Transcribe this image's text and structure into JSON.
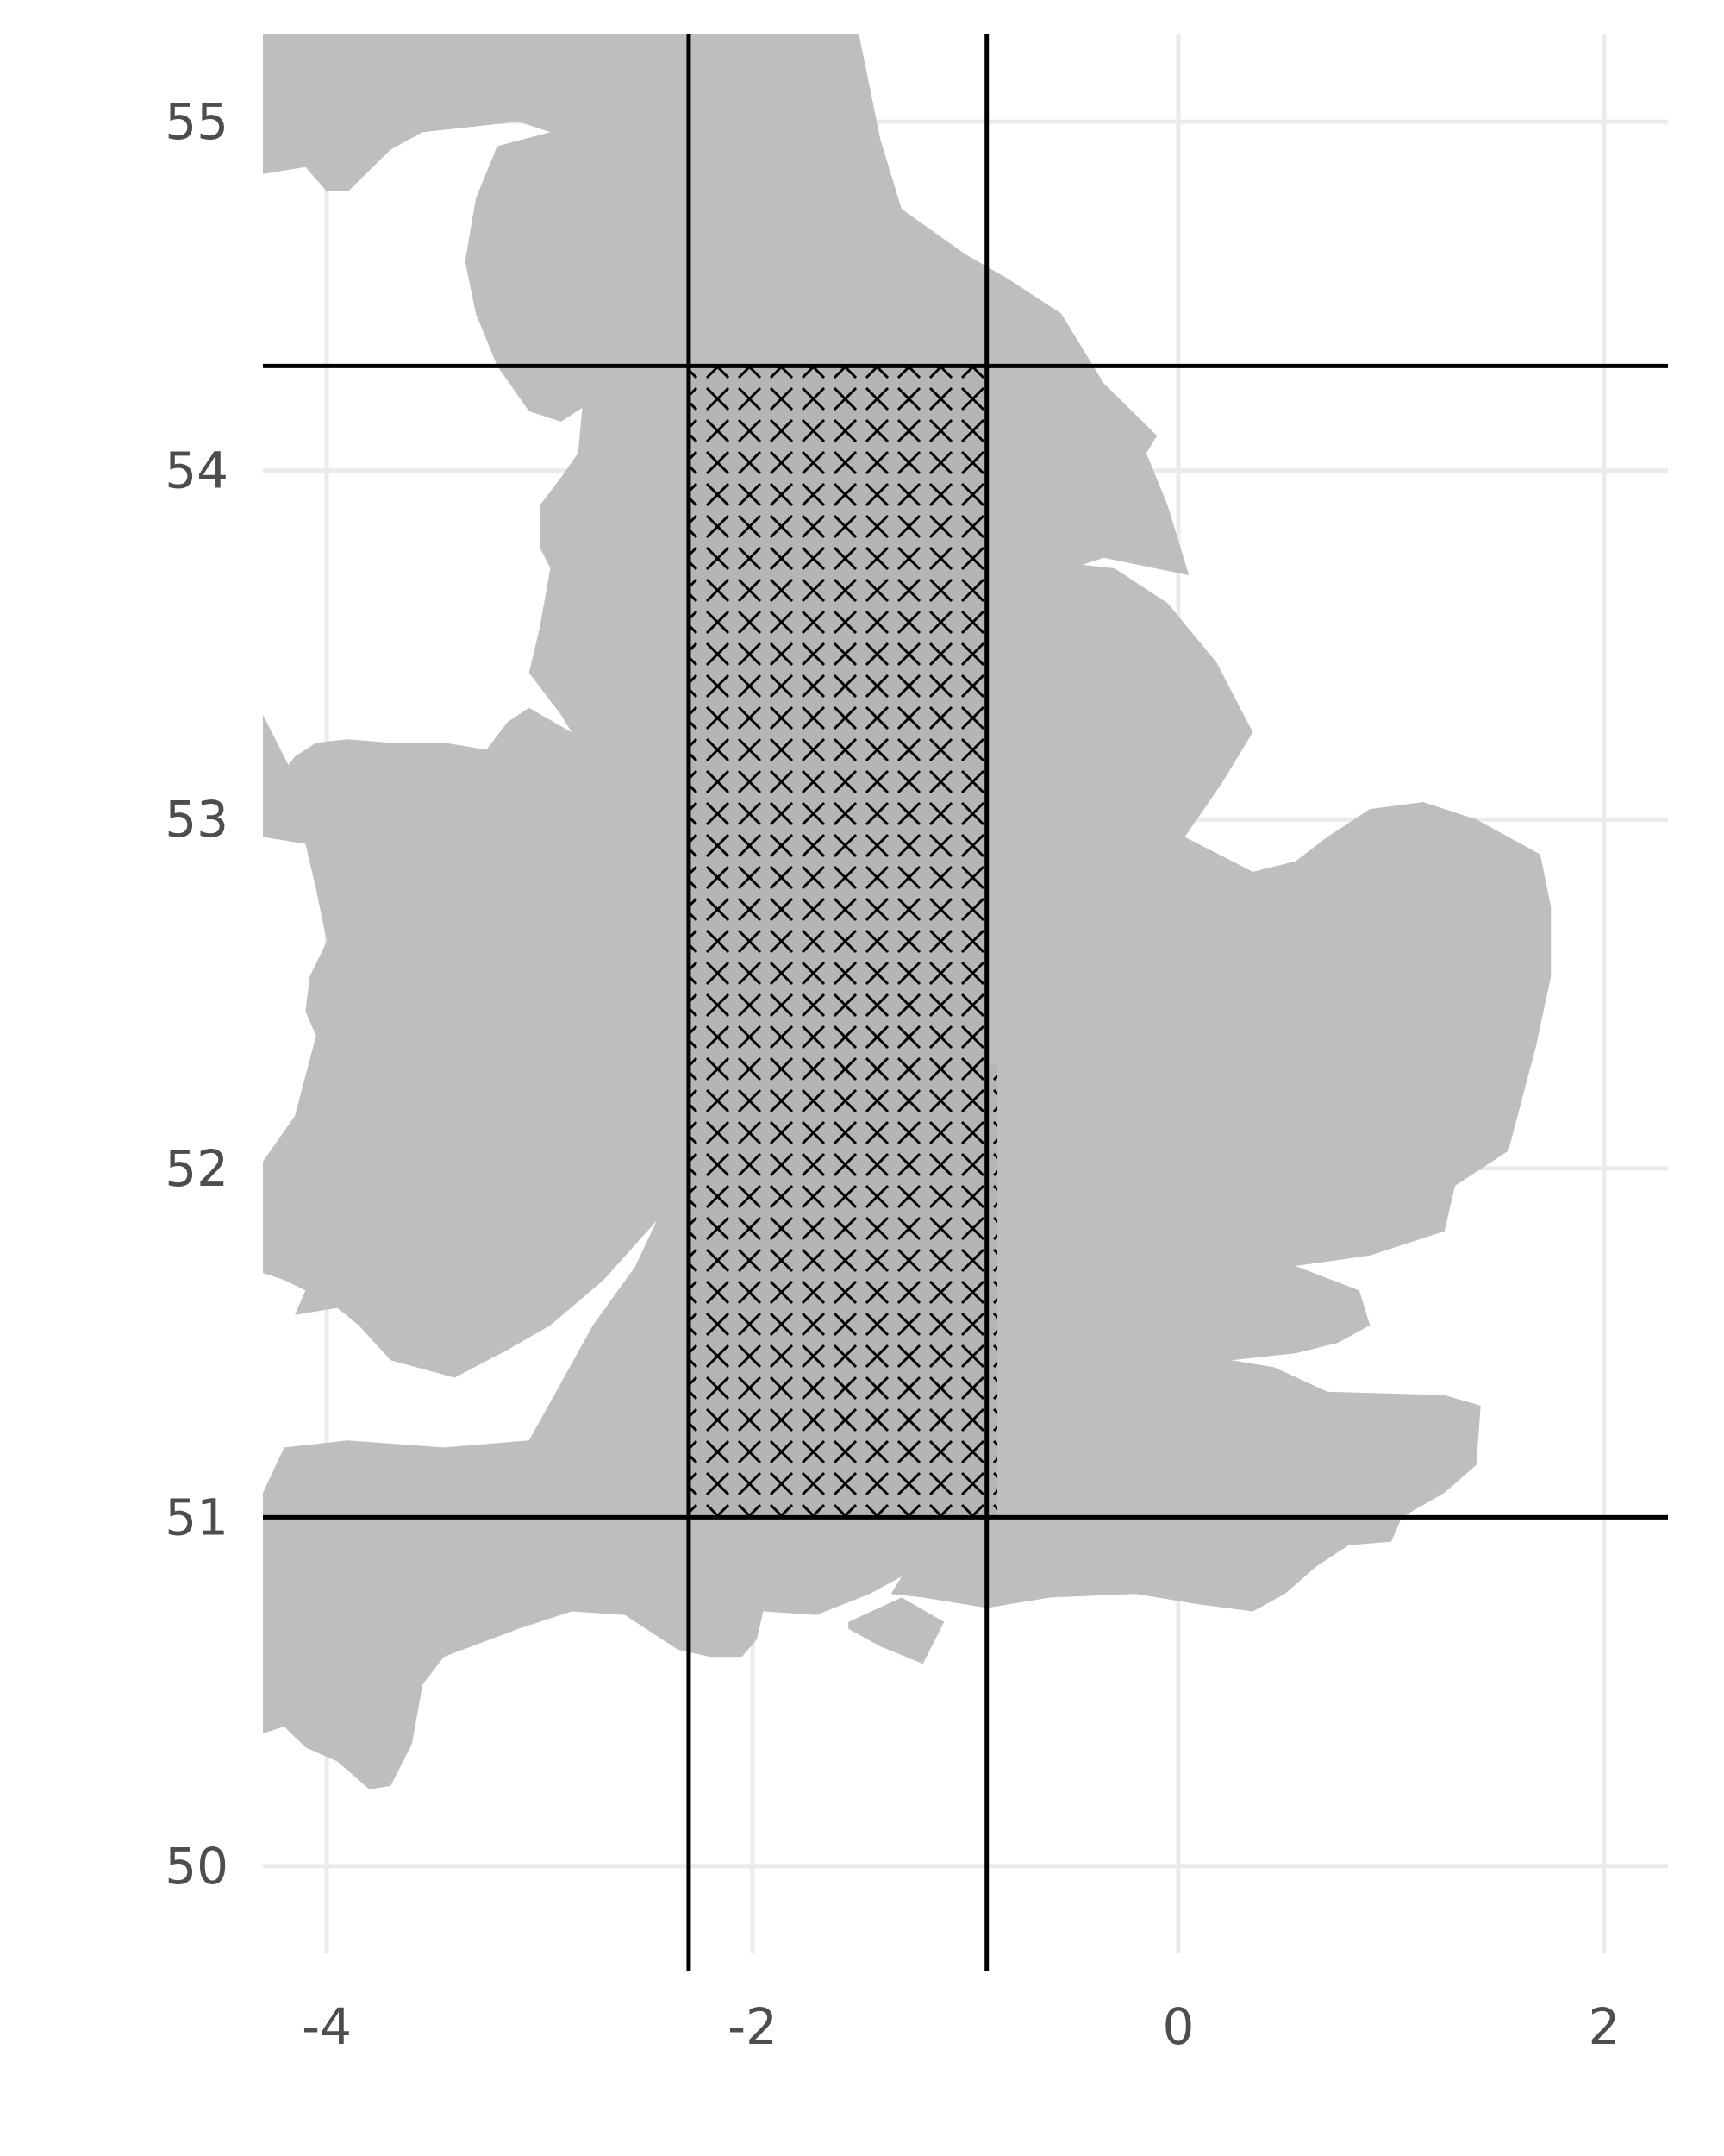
{
  "chart_data": {
    "type": "map",
    "title": "",
    "xlabel": "",
    "ylabel": "",
    "xlim": [
      -4.3,
      2.3
    ],
    "ylim": [
      49.75,
      55.25
    ],
    "x_ticks": [
      -4,
      -2,
      0,
      2
    ],
    "y_ticks": [
      50,
      51,
      52,
      53,
      54,
      55
    ],
    "x_tick_labels": [
      "-4",
      "-2",
      "0",
      "2"
    ],
    "y_tick_labels": [
      "50",
      "51",
      "52",
      "53",
      "54",
      "55"
    ],
    "grid": true,
    "reference_lines": {
      "vertical_lon": [
        -2.3,
        -0.9
      ],
      "horizontal_lat": [
        51.0,
        54.3
      ]
    },
    "highlight_region": {
      "lon": [
        -2.3,
        -0.9
      ],
      "lat": [
        51.0,
        54.3
      ],
      "extension": {
        "lon": [
          -0.9,
          -0.85
        ],
        "lat": [
          51.0,
          52.3
        ]
      },
      "pattern": "crosshatch-x"
    },
    "land_outline": [
      [
        -4.3,
        54.85
      ],
      [
        -4.1,
        54.87
      ],
      [
        -4.0,
        54.8
      ],
      [
        -3.9,
        54.8
      ],
      [
        -3.7,
        54.92
      ],
      [
        -3.55,
        54.97
      ],
      [
        -3.1,
        55.0
      ],
      [
        -2.95,
        54.97
      ],
      [
        -3.2,
        54.93
      ],
      [
        -3.3,
        54.78
      ],
      [
        -3.35,
        54.6
      ],
      [
        -3.3,
        54.45
      ],
      [
        -3.2,
        54.3
      ],
      [
        -3.05,
        54.17
      ],
      [
        -2.9,
        54.14
      ],
      [
        -2.8,
        54.18
      ],
      [
        -2.82,
        54.05
      ],
      [
        -2.9,
        53.98
      ],
      [
        -3.0,
        53.9
      ],
      [
        -3.0,
        53.78
      ],
      [
        -2.95,
        53.72
      ],
      [
        -3.0,
        53.55
      ],
      [
        -3.05,
        53.42
      ],
      [
        -2.9,
        53.3
      ],
      [
        -2.85,
        53.25
      ],
      [
        -3.05,
        53.32
      ],
      [
        -3.15,
        53.28
      ],
      [
        -3.25,
        53.2
      ],
      [
        -3.45,
        53.22
      ],
      [
        -3.7,
        53.22
      ],
      [
        -3.9,
        53.23
      ],
      [
        -4.05,
        53.22
      ],
      [
        -4.15,
        53.18
      ],
      [
        -4.3,
        53.06
      ],
      [
        -4.3,
        52.95
      ],
      [
        -4.1,
        52.93
      ],
      [
        -4.05,
        52.8
      ],
      [
        -4.0,
        52.65
      ],
      [
        -4.08,
        52.55
      ],
      [
        -4.1,
        52.45
      ],
      [
        -4.05,
        52.38
      ],
      [
        -4.15,
        52.15
      ],
      [
        -4.3,
        52.02
      ],
      [
        -4.3,
        51.7
      ],
      [
        -4.2,
        51.68
      ],
      [
        -4.1,
        51.65
      ],
      [
        -4.15,
        51.58
      ],
      [
        -3.95,
        51.6
      ],
      [
        -3.85,
        51.55
      ],
      [
        -3.7,
        51.45
      ],
      [
        -3.4,
        51.4
      ],
      [
        -3.15,
        51.48
      ],
      [
        -2.95,
        51.55
      ],
      [
        -2.7,
        51.68
      ],
      [
        -2.45,
        51.85
      ],
      [
        -2.55,
        51.72
      ],
      [
        -2.75,
        51.55
      ],
      [
        -2.95,
        51.33
      ],
      [
        -3.05,
        51.22
      ],
      [
        -3.45,
        51.2
      ],
      [
        -3.9,
        51.22
      ],
      [
        -4.2,
        51.2
      ],
      [
        -4.3,
        51.07
      ],
      [
        -4.3,
        50.38
      ],
      [
        -4.2,
        50.4
      ],
      [
        -4.1,
        50.34
      ],
      [
        -3.95,
        50.3
      ],
      [
        -3.8,
        50.22
      ],
      [
        -3.7,
        50.23
      ],
      [
        -3.6,
        50.35
      ],
      [
        -3.55,
        50.52
      ],
      [
        -3.45,
        50.6
      ],
      [
        -3.1,
        50.68
      ],
      [
        -2.85,
        50.73
      ],
      [
        -2.6,
        50.72
      ],
      [
        -2.35,
        50.62
      ],
      [
        -2.2,
        50.6
      ],
      [
        -2.05,
        50.6
      ],
      [
        -1.98,
        50.65
      ],
      [
        -1.95,
        50.73
      ],
      [
        -1.7,
        50.72
      ],
      [
        -1.45,
        50.78
      ],
      [
        -1.3,
        50.83
      ],
      [
        -1.35,
        50.78
      ],
      [
        -1.2,
        50.77
      ],
      [
        -0.9,
        50.74
      ],
      [
        -0.6,
        50.77
      ],
      [
        -0.2,
        50.78
      ],
      [
        0.1,
        50.75
      ],
      [
        0.35,
        50.73
      ],
      [
        0.5,
        50.78
      ],
      [
        0.65,
        50.86
      ],
      [
        0.8,
        50.92
      ],
      [
        1.0,
        50.93
      ],
      [
        1.05,
        51.0
      ],
      [
        1.25,
        51.07
      ],
      [
        1.4,
        51.15
      ],
      [
        1.42,
        51.32
      ],
      [
        1.25,
        51.35
      ],
      [
        0.7,
        51.36
      ],
      [
        0.45,
        51.43
      ],
      [
        0.25,
        51.45
      ],
      [
        0.55,
        51.47
      ],
      [
        0.75,
        51.5
      ],
      [
        0.9,
        51.55
      ],
      [
        0.85,
        51.65
      ],
      [
        0.55,
        51.72
      ],
      [
        0.9,
        51.75
      ],
      [
        1.05,
        51.78
      ],
      [
        1.25,
        51.82
      ],
      [
        1.3,
        51.95
      ],
      [
        1.55,
        52.05
      ],
      [
        1.68,
        52.35
      ],
      [
        1.75,
        52.55
      ],
      [
        1.75,
        52.75
      ],
      [
        1.7,
        52.9
      ],
      [
        1.4,
        53.0
      ],
      [
        1.15,
        53.05
      ],
      [
        0.9,
        53.03
      ],
      [
        0.7,
        52.95
      ],
      [
        0.55,
        52.88
      ],
      [
        0.35,
        52.85
      ],
      [
        0.03,
        52.95
      ],
      [
        0.2,
        53.1
      ],
      [
        0.35,
        53.25
      ],
      [
        0.18,
        53.45
      ],
      [
        -0.05,
        53.62
      ],
      [
        -0.3,
        53.72
      ],
      [
        -0.45,
        53.73
      ],
      [
        -0.35,
        53.75
      ],
      [
        0.05,
        53.7
      ],
      [
        -0.05,
        53.9
      ],
      [
        -0.15,
        54.05
      ],
      [
        -0.1,
        54.1
      ],
      [
        -0.35,
        54.25
      ],
      [
        -0.55,
        54.45
      ],
      [
        -0.8,
        54.55
      ],
      [
        -1.0,
        54.62
      ],
      [
        -1.3,
        54.75
      ],
      [
        -1.4,
        54.95
      ],
      [
        -1.5,
        55.25
      ],
      [
        -4.3,
        55.25
      ]
    ],
    "islands": [
      [
        [
          -4.3,
          53.3
        ],
        [
          -4.15,
          53.12
        ],
        [
          -4.05,
          53.12
        ],
        [
          -4.3,
          52.97
        ]
      ],
      [
        [
          -1.55,
          50.7
        ],
        [
          -1.3,
          50.77
        ],
        [
          -1.1,
          50.7
        ],
        [
          -1.2,
          50.58
        ],
        [
          -1.4,
          50.63
        ],
        [
          -1.55,
          50.68
        ]
      ]
    ]
  }
}
